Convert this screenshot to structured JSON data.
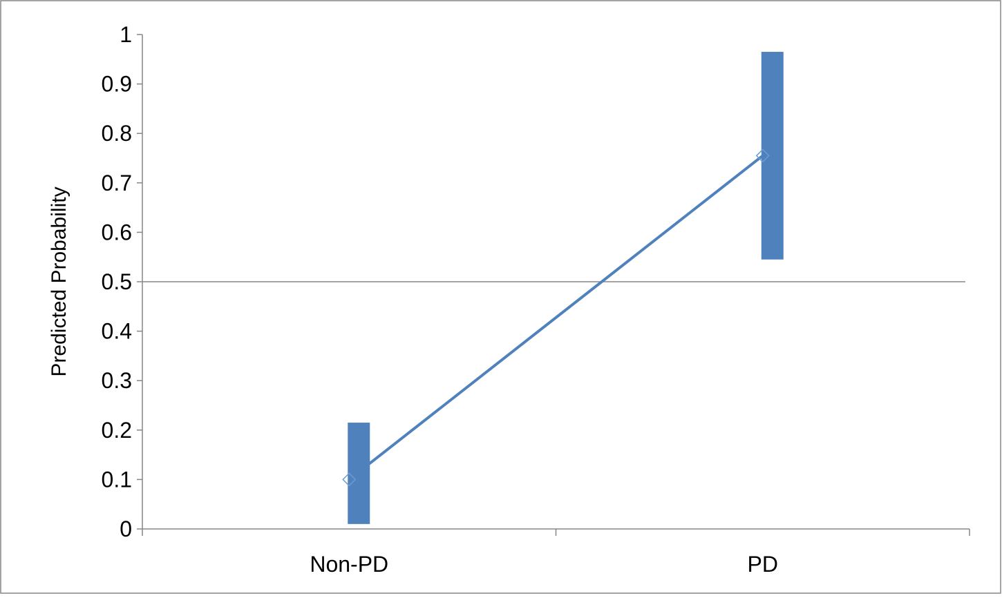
{
  "chart_data": {
    "type": "line",
    "categories": [
      "Non-PD",
      "PD"
    ],
    "values": [
      0.1,
      0.755
    ],
    "intervals": [
      {
        "low": 0.01,
        "high": 0.215
      },
      {
        "low": 0.545,
        "high": 0.965
      }
    ],
    "ylabel": "Predicted Probability",
    "xlabel": "",
    "ylim": [
      0,
      1
    ],
    "yticks": [
      "0",
      "0.1",
      "0.2",
      "0.3",
      "0.4",
      "0.5",
      "0.6",
      "0.7",
      "0.8",
      "0.9",
      "1"
    ],
    "reference_line": 0.5,
    "grid": false,
    "legend": "none",
    "series_color": "#4f81bd",
    "axis_color": "#868686"
  }
}
